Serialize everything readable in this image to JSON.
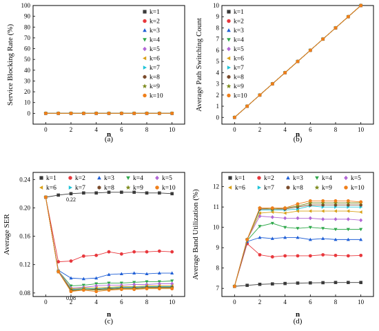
{
  "series_colors": [
    "#3a3a3a",
    "#e8383d",
    "#1f5fd6",
    "#2ea84a",
    "#b267d6",
    "#d9a017",
    "#20c4d8",
    "#7a4a2a",
    "#7c8a1c",
    "#ef7f1a"
  ],
  "chart_data": [
    {
      "id": "a",
      "type": "line",
      "caption": "(a)",
      "xlabel": "n",
      "ylabel": "Service Blocking Rate (%)",
      "xlim": [
        -1,
        11
      ],
      "ylim": [
        -10,
        100
      ],
      "xticks": [
        0,
        2,
        4,
        6,
        8,
        10
      ],
      "yticks": [
        0,
        10,
        20,
        30,
        40,
        50,
        60,
        70,
        80,
        90,
        100
      ],
      "legend_position": "top-right",
      "x": [
        0,
        1,
        2,
        3,
        4,
        5,
        6,
        7,
        8,
        9,
        10
      ],
      "series": [
        {
          "name": "k=1",
          "marker": "square",
          "values": [
            0,
            0,
            0,
            0,
            0,
            0,
            0,
            0,
            0,
            0,
            0
          ]
        },
        {
          "name": "k=2",
          "marker": "circle",
          "values": [
            0,
            0,
            0,
            0,
            0,
            0,
            0,
            0,
            0,
            0,
            0
          ]
        },
        {
          "name": "k=3",
          "marker": "triangle-up",
          "values": [
            0,
            0,
            0,
            0,
            0,
            0,
            0,
            0,
            0,
            0,
            0
          ]
        },
        {
          "name": "k=4",
          "marker": "triangle-down",
          "values": [
            0,
            0,
            0,
            0,
            0,
            0,
            0,
            0,
            0,
            0,
            0
          ]
        },
        {
          "name": "k=5",
          "marker": "diamond",
          "values": [
            0,
            0,
            0,
            0,
            0,
            0,
            0,
            0,
            0,
            0,
            0
          ]
        },
        {
          "name": "k=6",
          "marker": "triangle-left",
          "values": [
            0,
            0,
            0,
            0,
            0,
            0,
            0,
            0,
            0,
            0,
            0
          ]
        },
        {
          "name": "k=7",
          "marker": "triangle-right",
          "values": [
            0,
            0,
            0,
            0,
            0,
            0,
            0,
            0,
            0,
            0,
            0
          ]
        },
        {
          "name": "k=8",
          "marker": "hexagon",
          "values": [
            0,
            0,
            0,
            0,
            0,
            0,
            0,
            0,
            0,
            0,
            0
          ]
        },
        {
          "name": "k=9",
          "marker": "star",
          "values": [
            0,
            0,
            0,
            0,
            0,
            0,
            0,
            0,
            0,
            0,
            0
          ]
        },
        {
          "name": "k=10",
          "marker": "circle",
          "values": [
            0,
            0,
            0,
            0,
            0,
            0,
            0,
            0,
            0,
            0,
            0
          ]
        }
      ]
    },
    {
      "id": "b",
      "type": "line",
      "caption": "(b)",
      "xlabel": "n",
      "ylabel": "Average Path Switching Count",
      "xlim": [
        -1,
        11
      ],
      "ylim": [
        -0.6,
        10
      ],
      "xticks": [
        0,
        2,
        4,
        6,
        8,
        10
      ],
      "yticks": [
        0,
        1,
        2,
        3,
        4,
        5,
        6,
        7,
        8,
        9,
        10
      ],
      "legend_position": "top-left",
      "x": [
        0,
        1,
        2,
        3,
        4,
        5,
        6,
        7,
        8,
        9,
        10
      ],
      "series": [
        {
          "name": "k=1",
          "marker": "square",
          "values": [
            0,
            1,
            2,
            3,
            4,
            5,
            6,
            7,
            8,
            9,
            10
          ]
        },
        {
          "name": "k=2",
          "marker": "circle",
          "values": [
            0,
            1,
            2,
            3,
            4,
            5,
            6,
            7,
            8,
            9,
            10
          ]
        },
        {
          "name": "k=3",
          "marker": "triangle-up",
          "values": [
            0,
            1,
            2,
            3,
            4,
            5,
            6,
            7,
            8,
            9,
            10
          ]
        },
        {
          "name": "k=4",
          "marker": "triangle-down",
          "values": [
            0,
            1,
            2,
            3,
            4,
            5,
            6,
            7,
            8,
            9,
            10
          ]
        },
        {
          "name": "k=5",
          "marker": "diamond",
          "values": [
            0,
            1,
            2,
            3,
            4,
            5,
            6,
            7,
            8,
            9,
            10
          ]
        },
        {
          "name": "k=6",
          "marker": "triangle-left",
          "values": [
            0,
            1,
            2,
            3,
            4,
            5,
            6,
            7,
            8,
            9,
            10
          ]
        },
        {
          "name": "k=7",
          "marker": "triangle-right",
          "values": [
            0,
            1,
            2,
            3,
            4,
            5,
            6,
            7,
            8,
            9,
            10
          ]
        },
        {
          "name": "k=8",
          "marker": "hexagon",
          "values": [
            0,
            1,
            2,
            3,
            4,
            5,
            6,
            7,
            8,
            9,
            10
          ]
        },
        {
          "name": "k=9",
          "marker": "star",
          "values": [
            0,
            1,
            2,
            3,
            4,
            5,
            6,
            7,
            8,
            9,
            10
          ]
        },
        {
          "name": "k=10",
          "marker": "circle",
          "values": [
            0,
            1,
            2,
            3,
            4,
            5,
            6,
            7,
            8,
            9,
            10
          ]
        }
      ]
    },
    {
      "id": "c",
      "type": "line",
      "caption": "(c)",
      "xlabel": "n",
      "ylabel": "Average SER",
      "xlim": [
        -1,
        11
      ],
      "ylim": [
        0.075,
        0.25
      ],
      "xticks": [
        0,
        2,
        4,
        6,
        8,
        10
      ],
      "yticks": [
        0.08,
        0.12,
        0.16,
        0.2,
        0.24
      ],
      "ytick_labels": [
        "0.08",
        "0.12",
        "0.16",
        "0.20",
        "0.24"
      ],
      "legend_position": "top",
      "annotations": [
        {
          "text": "0.22",
          "x": 2,
          "y": 0.22
        },
        {
          "text": "0.08",
          "x": 2,
          "y": 0.08
        }
      ],
      "x": [
        0,
        1,
        2,
        3,
        4,
        5,
        6,
        7,
        8,
        9,
        10
      ],
      "series": [
        {
          "name": "k=1",
          "marker": "square",
          "values": [
            0.215,
            0.218,
            0.22,
            0.221,
            0.221,
            0.222,
            0.222,
            0.222,
            0.221,
            0.221,
            0.22
          ]
        },
        {
          "name": "k=2",
          "marker": "circle",
          "values": [
            0.215,
            0.124,
            0.125,
            0.132,
            0.133,
            0.138,
            0.135,
            0.138,
            0.138,
            0.139,
            0.138
          ]
        },
        {
          "name": "k=3",
          "marker": "triangle-up",
          "values": [
            0.215,
            0.112,
            0.101,
            0.1,
            0.101,
            0.106,
            0.107,
            0.108,
            0.107,
            0.108,
            0.108
          ]
        },
        {
          "name": "k=4",
          "marker": "triangle-down",
          "values": [
            0.215,
            0.111,
            0.09,
            0.091,
            0.093,
            0.094,
            0.094,
            0.095,
            0.096,
            0.096,
            0.097
          ]
        },
        {
          "name": "k=5",
          "marker": "diamond",
          "values": [
            0.215,
            0.111,
            0.087,
            0.088,
            0.09,
            0.091,
            0.091,
            0.092,
            0.092,
            0.093,
            0.093
          ]
        },
        {
          "name": "k=6",
          "marker": "triangle-left",
          "values": [
            0.215,
            0.11,
            0.086,
            0.087,
            0.087,
            0.088,
            0.089,
            0.089,
            0.09,
            0.09,
            0.09
          ]
        },
        {
          "name": "k=7",
          "marker": "triangle-right",
          "values": [
            0.215,
            0.11,
            0.085,
            0.086,
            0.086,
            0.087,
            0.088,
            0.088,
            0.089,
            0.089,
            0.089
          ]
        },
        {
          "name": "k=8",
          "marker": "hexagon",
          "values": [
            0.215,
            0.11,
            0.084,
            0.085,
            0.085,
            0.086,
            0.087,
            0.087,
            0.088,
            0.088,
            0.088
          ]
        },
        {
          "name": "k=9",
          "marker": "star",
          "values": [
            0.215,
            0.11,
            0.083,
            0.085,
            0.084,
            0.085,
            0.086,
            0.086,
            0.087,
            0.087,
            0.087
          ]
        },
        {
          "name": "k=10",
          "marker": "circle",
          "values": [
            0.215,
            0.11,
            0.082,
            0.084,
            0.082,
            0.084,
            0.085,
            0.085,
            0.086,
            0.086,
            0.086
          ]
        }
      ]
    },
    {
      "id": "d",
      "type": "line",
      "caption": "(d)",
      "xlabel": "n",
      "ylabel": "Average Band Utilization (%)",
      "xlim": [
        -1,
        11
      ],
      "ylim": [
        6.6,
        12.7
      ],
      "xticks": [
        0,
        2,
        4,
        6,
        8,
        10
      ],
      "yticks": [
        7,
        8,
        9,
        10,
        11,
        12
      ],
      "legend_position": "top",
      "x": [
        0,
        1,
        2,
        3,
        4,
        5,
        6,
        7,
        8,
        9,
        10
      ],
      "series": [
        {
          "name": "k=1",
          "marker": "square",
          "values": [
            7.1,
            7.15,
            7.2,
            7.22,
            7.24,
            7.26,
            7.27,
            7.28,
            7.29,
            7.29,
            7.29
          ]
        },
        {
          "name": "k=2",
          "marker": "circle",
          "values": [
            7.1,
            9.2,
            8.65,
            8.55,
            8.6,
            8.6,
            8.6,
            8.65,
            8.62,
            8.6,
            8.62
          ]
        },
        {
          "name": "k=3",
          "marker": "triangle-up",
          "values": [
            7.1,
            9.3,
            9.5,
            9.45,
            9.5,
            9.5,
            9.4,
            9.45,
            9.4,
            9.4,
            9.4
          ]
        },
        {
          "name": "k=4",
          "marker": "triangle-down",
          "values": [
            7.1,
            9.35,
            10.05,
            10.2,
            10.0,
            9.95,
            10.0,
            9.95,
            9.9,
            9.9,
            9.9
          ]
        },
        {
          "name": "k=5",
          "marker": "diamond",
          "values": [
            7.1,
            9.4,
            10.55,
            10.5,
            10.45,
            10.45,
            10.45,
            10.4,
            10.4,
            10.4,
            10.35
          ]
        },
        {
          "name": "k=6",
          "marker": "triangle-left",
          "values": [
            7.1,
            9.4,
            10.7,
            10.75,
            10.7,
            10.8,
            10.8,
            10.8,
            10.8,
            10.8,
            10.75
          ]
        },
        {
          "name": "k=7",
          "marker": "triangle-right",
          "values": [
            7.1,
            9.4,
            10.85,
            10.85,
            10.85,
            10.9,
            11.05,
            11.0,
            11.0,
            11.0,
            11.0
          ]
        },
        {
          "name": "k=8",
          "marker": "hexagon",
          "values": [
            7.1,
            9.4,
            10.9,
            10.9,
            10.9,
            11.0,
            11.1,
            11.1,
            11.1,
            11.1,
            11.1
          ]
        },
        {
          "name": "k=9",
          "marker": "star",
          "values": [
            7.1,
            9.4,
            10.95,
            10.9,
            10.95,
            11.05,
            11.2,
            11.2,
            11.2,
            11.2,
            11.2
          ]
        },
        {
          "name": "k=10",
          "marker": "circle",
          "values": [
            7.1,
            9.4,
            10.95,
            10.95,
            10.95,
            11.15,
            11.3,
            11.3,
            11.3,
            11.3,
            11.25
          ]
        }
      ]
    }
  ]
}
